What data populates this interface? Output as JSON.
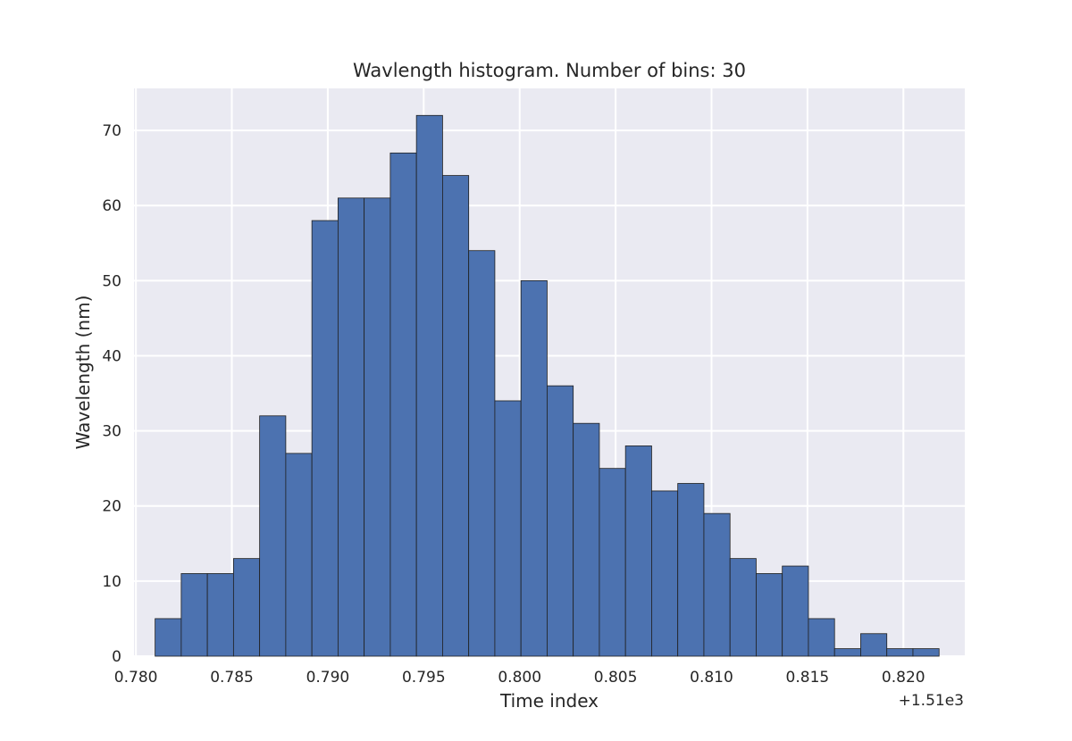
{
  "chart_data": {
    "type": "bar",
    "title": "Wavlength histogram. Number of bins: 30",
    "xlabel": "Time index",
    "ylabel": "Wavelength (nm)",
    "x_offset_label": "+1.51e3",
    "x_tick_labels": [
      "0.780",
      "0.785",
      "0.790",
      "0.795",
      "0.800",
      "0.805",
      "0.810",
      "0.815",
      "0.820"
    ],
    "y_tick_labels": [
      "0",
      "10",
      "20",
      "30",
      "40",
      "50",
      "60",
      "70"
    ],
    "xlim": [
      0.7799,
      0.8232
    ],
    "ylim": [
      0,
      75.6
    ],
    "bin_start": 0.781,
    "bin_width": 0.001362,
    "values": [
      5,
      11,
      11,
      13,
      32,
      27,
      58,
      61,
      61,
      67,
      72,
      64,
      54,
      34,
      50,
      36,
      31,
      25,
      28,
      22,
      23,
      19,
      13,
      11,
      12,
      5,
      1,
      3,
      1,
      1
    ],
    "grid": true,
    "colors": {
      "bar": "#4c72b0",
      "edge": "#1f1f1f",
      "background": "#eaeaf2",
      "grid": "#ffffff"
    }
  }
}
